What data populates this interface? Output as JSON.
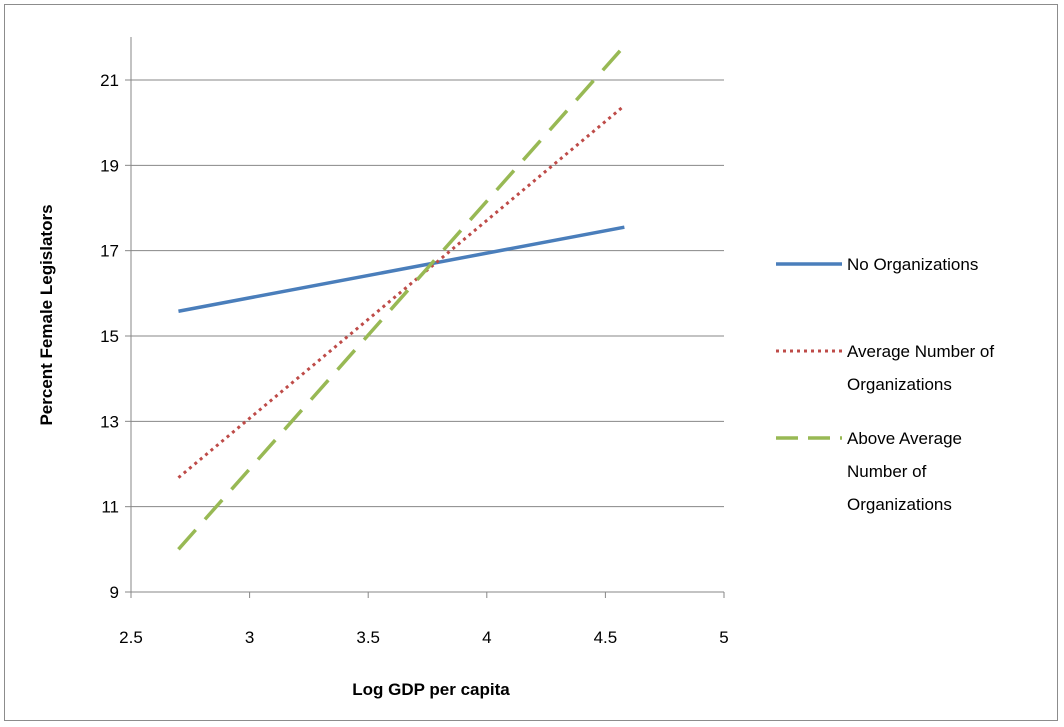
{
  "chart_data": {
    "type": "line",
    "xlabel": "Log GDP per capita",
    "ylabel": "Percent Female Legislators",
    "xlim": [
      2.5,
      5
    ],
    "ylim": [
      9,
      22
    ],
    "x_ticks": [
      2.5,
      3,
      3.5,
      4,
      4.5,
      5
    ],
    "y_ticks": [
      9,
      11,
      13,
      15,
      17,
      19,
      21
    ],
    "x_tick_labels": [
      "2.5",
      "3",
      "3.5",
      "4",
      "4.5",
      "5"
    ],
    "y_tick_labels": [
      "9",
      "11",
      "13",
      "15",
      "17",
      "19",
      "21"
    ],
    "grid": "horizontal",
    "legend_position": "right",
    "series": [
      {
        "name": "No Organizations",
        "color": "#4a7ebb",
        "style": "solid",
        "x": [
          2.7,
          4.58
        ],
        "y": [
          15.58,
          17.55
        ]
      },
      {
        "name": "Average Number of Organizations",
        "legend_lines": [
          "Average Number of",
          "Organizations"
        ],
        "color": "#be4b48",
        "style": "dotted",
        "x": [
          2.7,
          4.58
        ],
        "y": [
          11.68,
          20.4
        ]
      },
      {
        "name": "Above Average Number of Organizations",
        "legend_lines": [
          "Above Average",
          "Number of",
          "Organizations"
        ],
        "color": "#98b954",
        "style": "dashed",
        "x": [
          2.7,
          4.58
        ],
        "y": [
          10.0,
          21.8
        ]
      }
    ]
  }
}
